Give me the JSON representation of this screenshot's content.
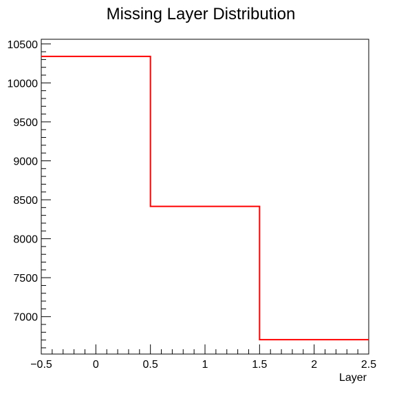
{
  "chart_data": {
    "type": "step",
    "title": "Missing Layer Distribution",
    "xlabel": "Layer",
    "ylabel": "",
    "xlim": [
      -0.5,
      2.5
    ],
    "ylim": [
      6520,
      10560
    ],
    "bins": [
      {
        "low": -0.5,
        "high": 0.5,
        "value": 10340
      },
      {
        "low": 0.5,
        "high": 1.5,
        "value": 8415
      },
      {
        "low": 1.5,
        "high": 2.5,
        "value": 6705
      }
    ],
    "x_ticks": [
      {
        "value": -0.5,
        "label": "−0.5"
      },
      {
        "value": 0,
        "label": "0"
      },
      {
        "value": 0.5,
        "label": "0.5"
      },
      {
        "value": 1,
        "label": "1"
      },
      {
        "value": 1.5,
        "label": "1.5"
      },
      {
        "value": 2,
        "label": "2"
      },
      {
        "value": 2.5,
        "label": "2.5"
      }
    ],
    "y_ticks": [
      {
        "value": 7000,
        "label": "7000"
      },
      {
        "value": 7500,
        "label": "7500"
      },
      {
        "value": 8000,
        "label": "8000"
      },
      {
        "value": 8500,
        "label": "8500"
      },
      {
        "value": 9000,
        "label": "9000"
      },
      {
        "value": 9500,
        "label": "9500"
      },
      {
        "value": 10000,
        "label": "10000"
      },
      {
        "value": 10500,
        "label": "10500"
      }
    ],
    "line_color": "#ff0000",
    "grid": false,
    "legend": "none"
  }
}
